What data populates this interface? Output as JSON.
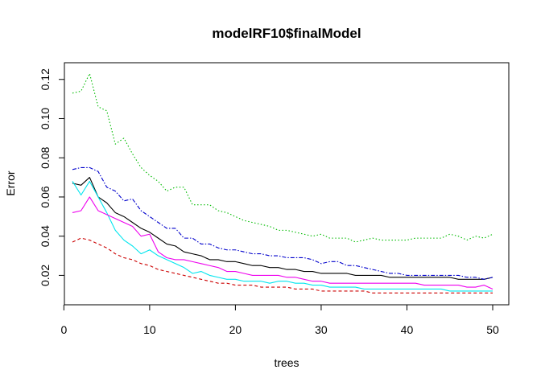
{
  "chart_data": {
    "type": "line",
    "title": "modelRF10$finalModel",
    "xlabel": "trees",
    "ylabel": "Error",
    "xlim": [
      1,
      50
    ],
    "ylim": [
      0.0095,
      0.124
    ],
    "xticks": [
      0,
      10,
      20,
      30,
      40,
      50
    ],
    "xtick_labels": [
      "0",
      "10",
      "20",
      "30",
      "40",
      "50"
    ],
    "yticks": [
      0.02,
      0.04,
      0.06,
      0.08,
      0.1,
      0.12
    ],
    "ytick_labels": [
      "0.02",
      "0.04",
      "0.06",
      "0.08",
      "0.10",
      "0.12"
    ],
    "grid": false,
    "legend": "none",
    "x": [
      1,
      2,
      3,
      4,
      5,
      6,
      7,
      8,
      9,
      10,
      11,
      12,
      13,
      14,
      15,
      16,
      17,
      18,
      19,
      20,
      21,
      22,
      23,
      24,
      25,
      26,
      27,
      28,
      29,
      30,
      31,
      32,
      33,
      34,
      35,
      36,
      37,
      38,
      39,
      40,
      41,
      42,
      43,
      44,
      45,
      46,
      47,
      48,
      49,
      50
    ],
    "series": [
      {
        "color": "#000000",
        "dash": "",
        "values": [
          0.067,
          0.066,
          0.07,
          0.06,
          0.057,
          0.052,
          0.05,
          0.047,
          0.044,
          0.042,
          0.039,
          0.036,
          0.035,
          0.032,
          0.031,
          0.03,
          0.028,
          0.028,
          0.027,
          0.027,
          0.026,
          0.025,
          0.025,
          0.024,
          0.024,
          0.023,
          0.023,
          0.022,
          0.022,
          0.021,
          0.021,
          0.021,
          0.021,
          0.02,
          0.02,
          0.02,
          0.02,
          0.019,
          0.019,
          0.019,
          0.019,
          0.019,
          0.019,
          0.019,
          0.019,
          0.018,
          0.018,
          0.018,
          0.018,
          0.019
        ]
      },
      {
        "color": "#DF536B",
        "stroke": "#CC0000",
        "dash": "4,3",
        "values": [
          0.037,
          0.039,
          0.038,
          0.036,
          0.034,
          0.031,
          0.029,
          0.028,
          0.026,
          0.025,
          0.023,
          0.022,
          0.021,
          0.02,
          0.019,
          0.018,
          0.017,
          0.016,
          0.016,
          0.015,
          0.015,
          0.015,
          0.014,
          0.014,
          0.014,
          0.014,
          0.013,
          0.013,
          0.013,
          0.012,
          0.012,
          0.012,
          0.012,
          0.012,
          0.012,
          0.011,
          0.011,
          0.011,
          0.011,
          0.011,
          0.011,
          0.011,
          0.011,
          0.011,
          0.011,
          0.011,
          0.011,
          0.011,
          0.011,
          0.011
        ]
      },
      {
        "color": "#00BB00",
        "dash": "1.5,2.5",
        "values": [
          0.113,
          0.114,
          0.123,
          0.106,
          0.104,
          0.087,
          0.09,
          0.082,
          0.075,
          0.071,
          0.068,
          0.063,
          0.065,
          0.065,
          0.056,
          0.056,
          0.056,
          0.053,
          0.052,
          0.05,
          0.048,
          0.047,
          0.046,
          0.045,
          0.043,
          0.043,
          0.042,
          0.041,
          0.04,
          0.041,
          0.039,
          0.039,
          0.039,
          0.037,
          0.038,
          0.039,
          0.038,
          0.038,
          0.038,
          0.038,
          0.039,
          0.039,
          0.039,
          0.039,
          0.041,
          0.04,
          0.038,
          0.04,
          0.039,
          0.041
        ]
      },
      {
        "color": "#0000CC",
        "dash": "5,2,1.5,2",
        "values": [
          0.074,
          0.075,
          0.075,
          0.073,
          0.065,
          0.063,
          0.058,
          0.059,
          0.053,
          0.05,
          0.047,
          0.044,
          0.044,
          0.039,
          0.039,
          0.036,
          0.036,
          0.034,
          0.033,
          0.033,
          0.032,
          0.031,
          0.031,
          0.03,
          0.03,
          0.029,
          0.029,
          0.029,
          0.028,
          0.026,
          0.027,
          0.027,
          0.025,
          0.025,
          0.024,
          0.023,
          0.022,
          0.021,
          0.021,
          0.02,
          0.02,
          0.02,
          0.02,
          0.02,
          0.02,
          0.02,
          0.019,
          0.019,
          0.018,
          0.019
        ]
      },
      {
        "color": "#00E5EE",
        "dash": "",
        "values": [
          0.068,
          0.061,
          0.068,
          0.06,
          0.052,
          0.043,
          0.038,
          0.035,
          0.031,
          0.033,
          0.03,
          0.028,
          0.026,
          0.024,
          0.021,
          0.022,
          0.02,
          0.019,
          0.018,
          0.018,
          0.017,
          0.017,
          0.017,
          0.016,
          0.017,
          0.017,
          0.016,
          0.016,
          0.015,
          0.015,
          0.014,
          0.014,
          0.014,
          0.014,
          0.013,
          0.013,
          0.013,
          0.013,
          0.013,
          0.013,
          0.013,
          0.013,
          0.013,
          0.013,
          0.012,
          0.012,
          0.012,
          0.012,
          0.012,
          0.012
        ]
      },
      {
        "color": "#EE00EE",
        "dash": "",
        "values": [
          0.052,
          0.053,
          0.06,
          0.053,
          0.051,
          0.049,
          0.047,
          0.045,
          0.04,
          0.041,
          0.032,
          0.029,
          0.028,
          0.028,
          0.027,
          0.026,
          0.025,
          0.024,
          0.022,
          0.022,
          0.021,
          0.02,
          0.02,
          0.02,
          0.02,
          0.019,
          0.019,
          0.018,
          0.017,
          0.017,
          0.016,
          0.016,
          0.016,
          0.016,
          0.016,
          0.016,
          0.016,
          0.016,
          0.016,
          0.016,
          0.016,
          0.015,
          0.015,
          0.015,
          0.015,
          0.015,
          0.014,
          0.014,
          0.015,
          0.013
        ]
      }
    ]
  }
}
